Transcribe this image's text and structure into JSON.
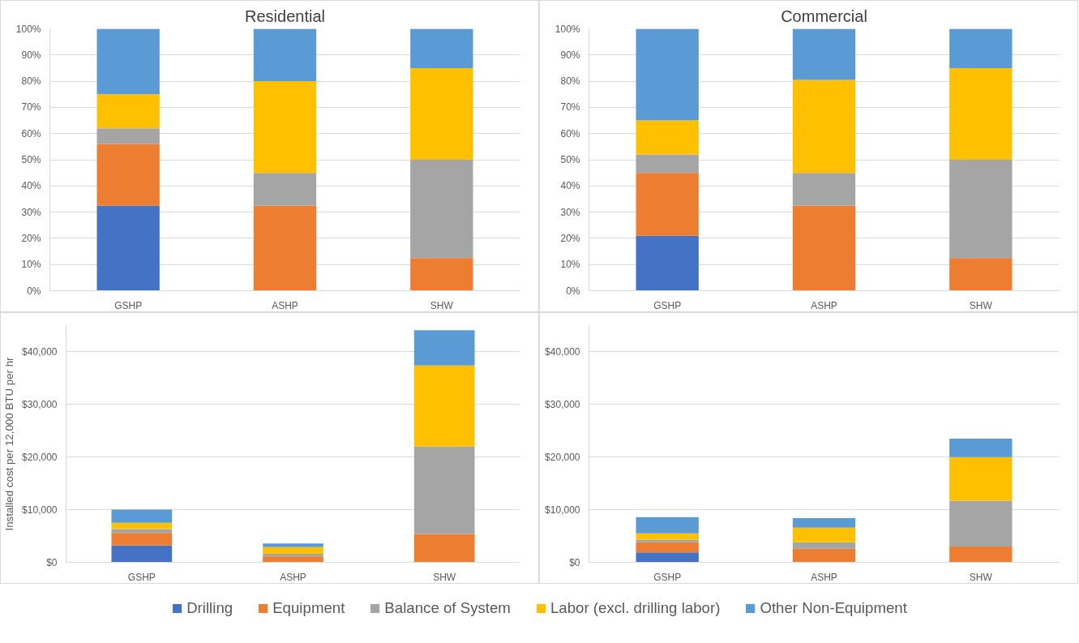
{
  "chart_data": [
    {
      "type": "bar",
      "stacked": true,
      "title": "Residential",
      "categories": [
        "GSHP",
        "ASHP",
        "SHW"
      ],
      "ylim": [
        0,
        100
      ],
      "yticks": [
        {
          "value": 0,
          "label": "0%"
        },
        {
          "value": 10,
          "label": "10%"
        },
        {
          "value": 20,
          "label": "20%"
        },
        {
          "value": 30,
          "label": "30%"
        },
        {
          "value": 40,
          "label": "40%"
        },
        {
          "value": 50,
          "label": "50%"
        },
        {
          "value": 60,
          "label": "60%"
        },
        {
          "value": 70,
          "label": "70%"
        },
        {
          "value": 80,
          "label": "80%"
        },
        {
          "value": 90,
          "label": "90%"
        },
        {
          "value": 100,
          "label": "100%"
        }
      ],
      "grid": "y",
      "series": [
        {
          "color": "#4472c4",
          "values": [
            32.5,
            0,
            0
          ]
        },
        {
          "color": "#ed7d31",
          "values": [
            23.5,
            32.5,
            12.5
          ]
        },
        {
          "color": "#a5a5a5",
          "values": [
            6,
            12.5,
            37.5
          ]
        },
        {
          "color": "#ffc000",
          "values": [
            13,
            35,
            35
          ]
        },
        {
          "color": "#5b9bd5",
          "values": [
            25,
            20,
            15
          ]
        }
      ]
    },
    {
      "type": "bar",
      "stacked": true,
      "title": "Commercial",
      "categories": [
        "GSHP",
        "ASHP",
        "SHW"
      ],
      "ylim": [
        0,
        100
      ],
      "yticks": [
        {
          "value": 0,
          "label": "0%"
        },
        {
          "value": 10,
          "label": "10%"
        },
        {
          "value": 20,
          "label": "20%"
        },
        {
          "value": 30,
          "label": "30%"
        },
        {
          "value": 40,
          "label": "40%"
        },
        {
          "value": 50,
          "label": "50%"
        },
        {
          "value": 60,
          "label": "60%"
        },
        {
          "value": 70,
          "label": "70%"
        },
        {
          "value": 80,
          "label": "80%"
        },
        {
          "value": 90,
          "label": "90%"
        },
        {
          "value": 100,
          "label": "100%"
        }
      ],
      "grid": "y",
      "series": [
        {
          "color": "#4472c4",
          "values": [
            21,
            0,
            0
          ]
        },
        {
          "color": "#ed7d31",
          "values": [
            24,
            32.5,
            12.5
          ]
        },
        {
          "color": "#a5a5a5",
          "values": [
            7,
            12.5,
            37.5
          ]
        },
        {
          "color": "#ffc000",
          "values": [
            13,
            35.5,
            35
          ]
        },
        {
          "color": "#5b9bd5",
          "values": [
            35,
            19.5,
            15
          ]
        }
      ]
    },
    {
      "type": "bar",
      "stacked": true,
      "ylabel": "Installed cost per 12,000 BTU per hr",
      "categories": [
        "GSHP",
        "ASHP",
        "SHW"
      ],
      "ylim": [
        0,
        45000
      ],
      "yticks": [
        {
          "value": 0,
          "label": "$0"
        },
        {
          "value": 10000,
          "label": "$10,000"
        },
        {
          "value": 20000,
          "label": "$20,000"
        },
        {
          "value": 30000,
          "label": "$30,000"
        },
        {
          "value": 40000,
          "label": "$40,000"
        }
      ],
      "grid": "y",
      "series": [
        {
          "color": "#4472c4",
          "values": [
            3200,
            0,
            0
          ]
        },
        {
          "color": "#ed7d31",
          "values": [
            2400,
            1100,
            5400
          ]
        },
        {
          "color": "#a5a5a5",
          "values": [
            700,
            500,
            16600
          ]
        },
        {
          "color": "#ffc000",
          "values": [
            1200,
            1300,
            15400
          ]
        },
        {
          "color": "#5b9bd5",
          "values": [
            2500,
            700,
            6700
          ]
        }
      ]
    },
    {
      "type": "bar",
      "stacked": true,
      "categories": [
        "GSHP",
        "ASHP",
        "SHW"
      ],
      "ylim": [
        0,
        45000
      ],
      "yticks": [
        {
          "value": 0,
          "label": "$0"
        },
        {
          "value": 10000,
          "label": "$10,000"
        },
        {
          "value": 20000,
          "label": "$20,000"
        },
        {
          "value": 30000,
          "label": "$30,000"
        },
        {
          "value": 40000,
          "label": "$40,000"
        }
      ],
      "grid": "y",
      "legend": "bottom",
      "series": [
        {
          "name": "Drilling",
          "color": "#4472c4",
          "values": [
            1900,
            0,
            0
          ]
        },
        {
          "name": "Equipment",
          "color": "#ed7d31",
          "values": [
            1900,
            2600,
            3000
          ]
        },
        {
          "name": "Balance of System",
          "color": "#a5a5a5",
          "values": [
            500,
            1200,
            8700
          ]
        },
        {
          "name": "Labor (excl. drilling labor)",
          "color": "#ffc000",
          "values": [
            1200,
            2800,
            8300
          ]
        },
        {
          "name": "Other Non-Equipment",
          "color": "#5b9bd5",
          "values": [
            3100,
            1800,
            3500
          ]
        }
      ]
    }
  ]
}
